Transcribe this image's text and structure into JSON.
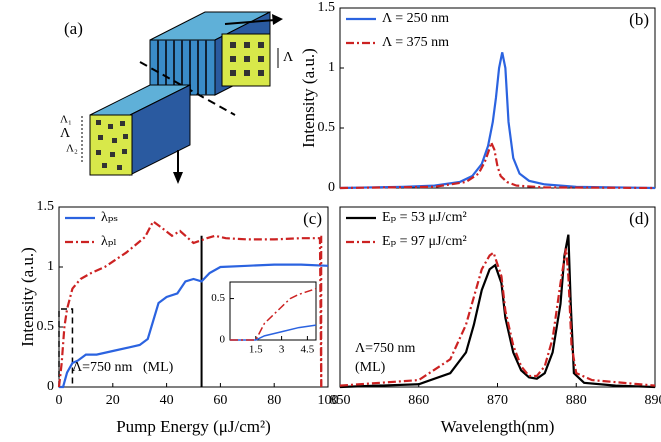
{
  "diagram": {
    "label": "(a)",
    "period_labels": [
      "Λ",
      "Λ₁",
      "Λ",
      "Λ₂"
    ]
  },
  "chart_data": [
    {
      "type": "line",
      "label": "(b)",
      "ylabel": "Intensity (a.u.)",
      "legend": "upper left",
      "xlim": [
        0,
        100
      ],
      "ylim": [
        0,
        1.5
      ],
      "yticks": [
        0,
        0.5,
        1,
        1.5
      ],
      "series": [
        {
          "name": "Λ = 250 nm",
          "color": "#2b63e0",
          "dash": "solid",
          "x": [
            0,
            20,
            30,
            38,
            42,
            45,
            47,
            48.5,
            49.5,
            50.5,
            51.5,
            52.5,
            53.5,
            55,
            57,
            60,
            65,
            75,
            100
          ],
          "values": [
            0,
            0.01,
            0.02,
            0.05,
            0.1,
            0.2,
            0.35,
            0.55,
            0.75,
            1.0,
            1.13,
            1.0,
            0.55,
            0.25,
            0.12,
            0.06,
            0.03,
            0.01,
            0
          ]
        },
        {
          "name": "Λ = 375 nm",
          "color": "#cc2222",
          "dash": "dashdot",
          "x": [
            0,
            30,
            40,
            44,
            46,
            47.5,
            48,
            49,
            50,
            51,
            53,
            56,
            65,
            100
          ],
          "values": [
            0,
            0.01,
            0.05,
            0.12,
            0.22,
            0.33,
            0.38,
            0.32,
            0.18,
            0.1,
            0.05,
            0.02,
            0.005,
            0
          ]
        }
      ]
    },
    {
      "type": "line",
      "label": "(c)",
      "xlabel": "Pump Energy (μJ/cm²)",
      "ylabel": "Intensity (a.u.)",
      "legend": "upper left",
      "xlim": [
        0,
        100
      ],
      "ylim": [
        0,
        1.5
      ],
      "xticks": [
        0,
        20,
        40,
        60,
        80,
        100
      ],
      "yticks": [
        0,
        0.5,
        1,
        1.5
      ],
      "annotations": [
        "Λ=750 nm",
        "(ML)"
      ],
      "markers": [
        {
          "x": 53,
          "color": "#000000",
          "dash": "solid"
        },
        {
          "x": 97.5,
          "color": "#cc2222",
          "dash": "dashdot"
        }
      ],
      "highlight": {
        "xlim": [
          0,
          5
        ],
        "ylim": [
          0,
          0.65
        ]
      },
      "series": [
        {
          "name": "λₚₛ",
          "color": "#2b63e0",
          "dash": "solid",
          "x": [
            0,
            1.5,
            3,
            5,
            7,
            10,
            14,
            20,
            26,
            30,
            33,
            35,
            37,
            40,
            44,
            47,
            50,
            53,
            56,
            60,
            70,
            80,
            90,
            100
          ],
          "values": [
            0,
            0,
            0.12,
            0.2,
            0.22,
            0.27,
            0.27,
            0.3,
            0.33,
            0.35,
            0.4,
            0.55,
            0.7,
            0.75,
            0.78,
            0.88,
            0.9,
            0.88,
            0.95,
            1.0,
            1.01,
            1.02,
            1.02,
            1.01
          ]
        },
        {
          "name": "λₚₗ",
          "color": "#cc2222",
          "dash": "dashdot",
          "x": [
            0,
            1,
            2,
            3,
            5,
            8,
            12,
            17,
            25,
            32,
            35,
            38,
            42,
            45,
            50,
            55,
            58,
            62,
            70,
            80,
            90,
            97,
            97.5
          ],
          "values": [
            0,
            0.2,
            0.5,
            0.65,
            0.82,
            0.9,
            0.95,
            1.0,
            1.12,
            1.25,
            1.38,
            1.33,
            1.26,
            1.3,
            1.2,
            1.24,
            1.26,
            1.24,
            1.23,
            1.23,
            1.24,
            1.24,
            0
          ]
        }
      ]
    },
    {
      "type": "line",
      "label": "(d)",
      "xlabel": "Wavelength(nm)",
      "legend": "upper left",
      "xlim": [
        850,
        890
      ],
      "ylim": [
        0,
        1.3
      ],
      "xticks": [
        850,
        860,
        870,
        880,
        890
      ],
      "annotations": [
        "Λ=750 nm",
        "(ML)"
      ],
      "series": [
        {
          "name": "Eₚ = 53 μJ/cm²",
          "color": "#000000",
          "dash": "solid",
          "x": [
            850,
            860,
            864,
            866,
            867,
            868,
            869,
            869.7,
            870.5,
            871,
            872,
            873,
            874,
            875,
            876,
            877,
            878,
            878.5,
            879,
            879.3,
            879.7,
            881,
            885,
            890
          ],
          "values": [
            0,
            0.02,
            0.1,
            0.25,
            0.45,
            0.7,
            0.85,
            0.88,
            0.75,
            0.5,
            0.25,
            0.12,
            0.07,
            0.06,
            0.1,
            0.25,
            0.6,
            0.95,
            1.1,
            0.6,
            0.1,
            0.03,
            0.01,
            0
          ]
        },
        {
          "name": "Eₚ = 97 μJ/cm²",
          "color": "#cc2222",
          "dash": "dashdot",
          "x": [
            850,
            860,
            864,
            866,
            867,
            868,
            869,
            869.5,
            870.5,
            871,
            872,
            873,
            874,
            875,
            876,
            877,
            878,
            878.7,
            879,
            879.4,
            880,
            882,
            890
          ],
          "values": [
            0.01,
            0.05,
            0.2,
            0.45,
            0.65,
            0.85,
            0.95,
            0.97,
            0.8,
            0.55,
            0.3,
            0.15,
            0.08,
            0.08,
            0.15,
            0.35,
            0.75,
            1.0,
            0.8,
            0.3,
            0.1,
            0.05,
            0.01
          ]
        }
      ]
    },
    {
      "type": "line",
      "xlim": [
        0,
        5
      ],
      "ylim": [
        0,
        0.7
      ],
      "xticks": [
        1.5,
        3,
        4.5
      ],
      "yticks": [
        0,
        0.5
      ],
      "series": [
        {
          "color": "#2b63e0",
          "dash": "solid",
          "x": [
            0,
            1.5,
            2,
            3,
            4,
            5
          ],
          "values": [
            0,
            0,
            0.05,
            0.1,
            0.15,
            0.18
          ]
        },
        {
          "color": "#cc2222",
          "dash": "dashdot",
          "x": [
            0,
            1.5,
            2,
            2.5,
            3,
            3.5,
            4,
            5
          ],
          "values": [
            0,
            0,
            0.2,
            0.3,
            0.4,
            0.5,
            0.55,
            0.62
          ]
        }
      ]
    }
  ]
}
